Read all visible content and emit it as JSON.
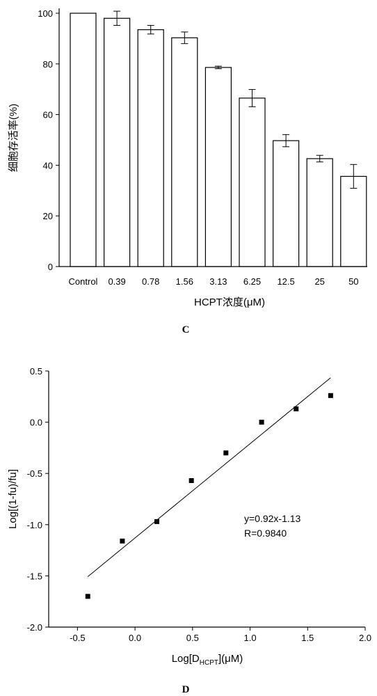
{
  "chart_data": [
    {
      "type": "bar",
      "categories": [
        "Control",
        "0.39",
        "0.78",
        "1.56",
        "3.13",
        "6.25",
        "12.5",
        "25",
        "50"
      ],
      "values": [
        100,
        98,
        93.5,
        90.3,
        78.6,
        66.5,
        49.7,
        42.6,
        35.6
      ],
      "errors": [
        0,
        2.8,
        1.7,
        2.3,
        0.5,
        3.4,
        2.4,
        1.3,
        4.7
      ],
      "xlabel": "HCPT浓度(μM)",
      "ylabel": "细胞存活率(%)",
      "ylim": [
        0,
        100
      ],
      "yticks": [
        0,
        20,
        40,
        60,
        80,
        100
      ],
      "panel_label": "C"
    },
    {
      "type": "scatter",
      "x": [
        -0.41,
        -0.11,
        0.19,
        0.49,
        0.79,
        1.1,
        1.4,
        1.7
      ],
      "y": [
        -1.7,
        -1.16,
        -0.97,
        -0.57,
        -0.3,
        0.0,
        0.13,
        0.26
      ],
      "fit": {
        "slope": 0.92,
        "intercept": -1.13,
        "x_range": [
          -0.41,
          1.7
        ]
      },
      "equation": "y=0.92x-1.13",
      "r_text": "R=0.9840",
      "xlabel_main": "Log[D",
      "xlabel_sub": "HCPT",
      "xlabel_tail": "](μM)",
      "ylabel": "Log[(1-fu)/fu]",
      "xlim": [
        -0.75,
        2.0
      ],
      "ylim": [
        -2.0,
        0.5
      ],
      "xticks": [
        "-0.5",
        "0.0",
        "0.5",
        "1.0",
        "1.5",
        "2.0"
      ],
      "yticks": [
        "-2.0",
        "-1.5",
        "-1.0",
        "-0.5",
        "0.0",
        "0.5"
      ],
      "panel_label": "D"
    }
  ]
}
